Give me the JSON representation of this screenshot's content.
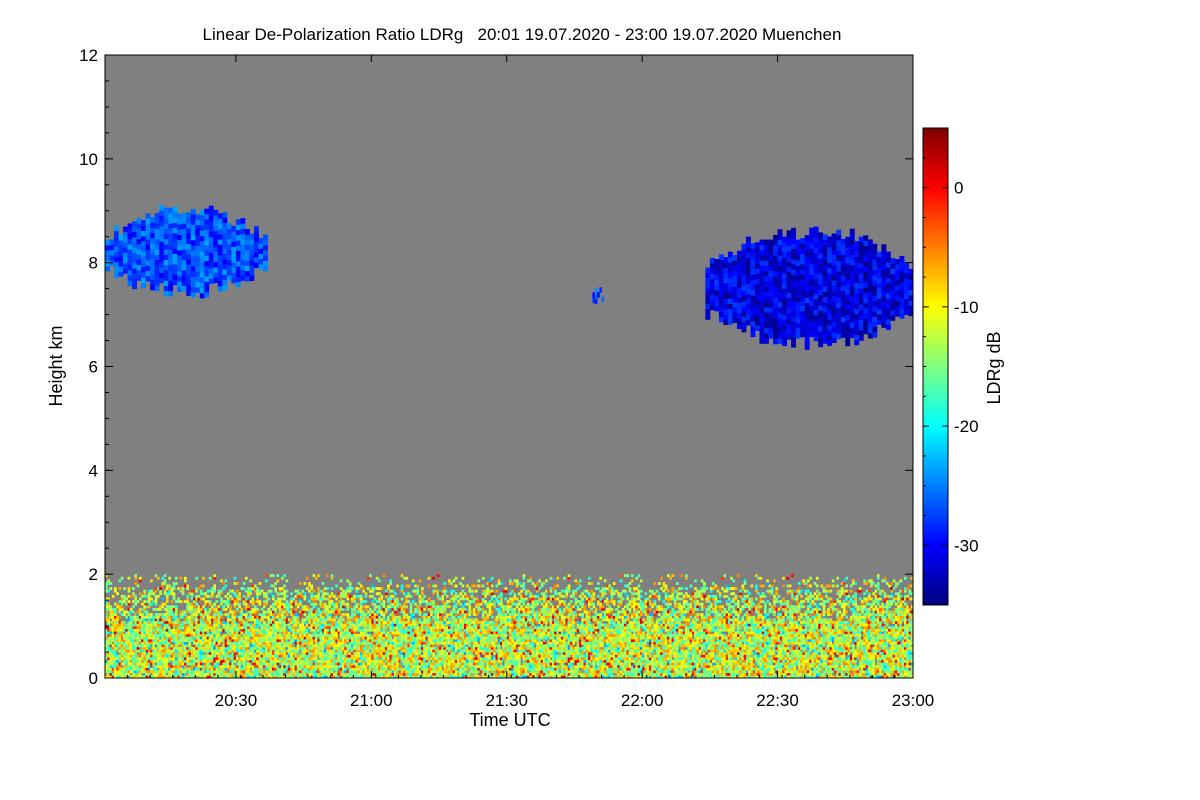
{
  "chart_data": {
    "type": "heatmap",
    "title": "Linear De-Polarization Ratio LDRg   20:01 19.07.2020 - 23:00 19.07.2020 Muenchen",
    "xlabel": "Time UTC",
    "ylabel": "Height km",
    "x_range_minutes": [
      1201,
      1380
    ],
    "y_range_km": [
      0,
      12
    ],
    "x_ticks": [
      {
        "minute": 1230,
        "label": "20:30"
      },
      {
        "minute": 1260,
        "label": "21:00"
      },
      {
        "minute": 1290,
        "label": "21:30"
      },
      {
        "minute": 1320,
        "label": "22:00"
      },
      {
        "minute": 1350,
        "label": "22:30"
      },
      {
        "minute": 1380,
        "label": "23:00"
      }
    ],
    "y_ticks": [
      {
        "value": 0,
        "label": "0"
      },
      {
        "value": 2,
        "label": "2"
      },
      {
        "value": 4,
        "label": "4"
      },
      {
        "value": 6,
        "label": "6"
      },
      {
        "value": 8,
        "label": "8"
      },
      {
        "value": 10,
        "label": "10"
      },
      {
        "value": 12,
        "label": "12"
      }
    ],
    "colorbar": {
      "label": "LDRg dB",
      "range": [
        -35,
        5
      ],
      "ticks": [
        {
          "value": 0,
          "label": "0"
        },
        {
          "value": -10,
          "label": "-10"
        },
        {
          "value": -20,
          "label": "-20"
        },
        {
          "value": -30,
          "label": "-30"
        }
      ],
      "colors": [
        "#00007f",
        "#0000ff",
        "#007fff",
        "#00ffff",
        "#7fff7f",
        "#ffff00",
        "#ff7f00",
        "#ff0000",
        "#7f0000"
      ]
    },
    "background_color": "#808080",
    "features": [
      {
        "name": "cirrus-cloud-early",
        "minutes": [
          1201,
          1236
        ],
        "height_km": [
          7.3,
          9.1
        ],
        "ldr_db": -27
      },
      {
        "name": "cirrus-cloud-late",
        "minutes": [
          1334,
          1380
        ],
        "height_km": [
          6.3,
          8.7
        ],
        "ldr_db": -31
      },
      {
        "name": "small-cloud-patch",
        "minutes": [
          1309,
          1311
        ],
        "height_km": [
          7.1,
          7.6
        ],
        "ldr_db": -27
      },
      {
        "name": "boundary-layer-aerosol",
        "minutes": [
          1201,
          1380
        ],
        "height_km": [
          0,
          2.0
        ],
        "ldr_db": -12
      }
    ]
  }
}
